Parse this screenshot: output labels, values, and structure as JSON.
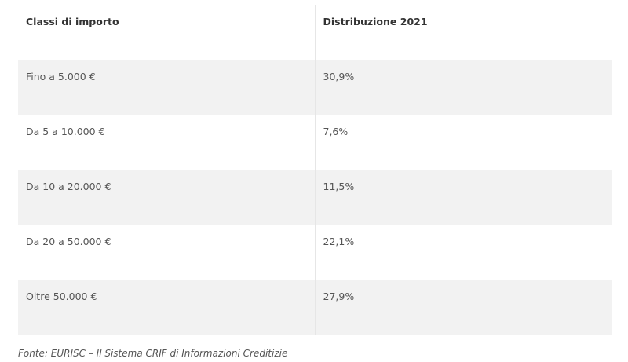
{
  "table": {
    "headers": [
      "Classi di importo",
      "Distribuzione 2021"
    ],
    "rows": [
      [
        "Fino a 5.000 €",
        "30,9%"
      ],
      [
        "Da 5 a 10.000 €",
        "7,6%"
      ],
      [
        "Da 10 a 20.000 €",
        "11,5%"
      ],
      [
        "Da 20 a 50.000 €",
        "22,1%"
      ],
      [
        "Oltre 50.000 €",
        "27,9%"
      ]
    ]
  },
  "source_note": "Fonte: EURISC – Il Sistema CRIF di Informazioni Creditizie"
}
